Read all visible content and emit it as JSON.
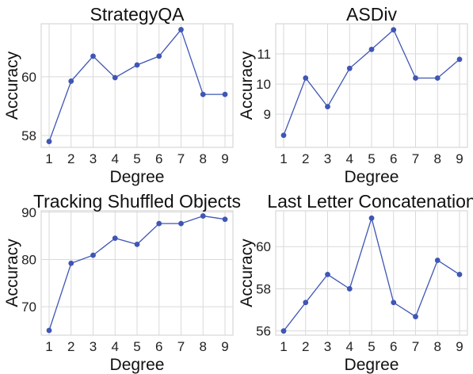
{
  "colors": {
    "line": "#3f56b5",
    "marker": "#3f56b5",
    "grid": "#d9d9d9"
  },
  "chart_data": [
    {
      "type": "line",
      "title": "StrategyQA",
      "xlabel": "Degree",
      "ylabel": "Accuracy",
      "x": [
        1,
        2,
        3,
        4,
        5,
        6,
        7,
        8,
        9
      ],
      "series": [
        {
          "values": [
            57.8,
            59.85,
            60.7,
            59.97,
            60.4,
            60.7,
            61.6,
            59.4,
            59.4
          ]
        }
      ],
      "ylim": [
        57.6,
        61.8
      ],
      "yticks": [
        58,
        60
      ],
      "grid": true
    },
    {
      "type": "line",
      "title": "ASDiv",
      "xlabel": "Degree",
      "ylabel": "Accuracy",
      "x": [
        1,
        2,
        3,
        4,
        5,
        6,
        7,
        8,
        9
      ],
      "series": [
        {
          "values": [
            8.3,
            10.2,
            9.25,
            10.52,
            11.15,
            11.8,
            10.2,
            10.2,
            10.82
          ]
        }
      ],
      "ylim": [
        7.9,
        12.0
      ],
      "yticks": [
        9,
        10,
        11
      ],
      "grid": true
    },
    {
      "type": "line",
      "title": "Tracking Shuffled Objects",
      "xlabel": "Degree",
      "ylabel": "Accuracy",
      "x": [
        1,
        2,
        3,
        4,
        5,
        6,
        7,
        8,
        9
      ],
      "series": [
        {
          "values": [
            65.0,
            79.2,
            80.9,
            84.5,
            83.2,
            87.6,
            87.6,
            89.2,
            88.5
          ]
        }
      ],
      "ylim": [
        64.0,
        90.3
      ],
      "yticks": [
        70,
        80,
        90
      ],
      "grid": true
    },
    {
      "type": "line",
      "title": "Last Letter Concatenation",
      "xlabel": "Degree",
      "ylabel": "Accuracy",
      "x": [
        1,
        2,
        3,
        4,
        5,
        6,
        7,
        8,
        9
      ],
      "series": [
        {
          "values": [
            56.0,
            57.35,
            58.68,
            58.0,
            61.35,
            57.35,
            56.68,
            59.35,
            58.68
          ]
        }
      ],
      "ylim": [
        55.8,
        61.7
      ],
      "yticks": [
        56,
        58,
        60
      ],
      "grid": true
    }
  ]
}
